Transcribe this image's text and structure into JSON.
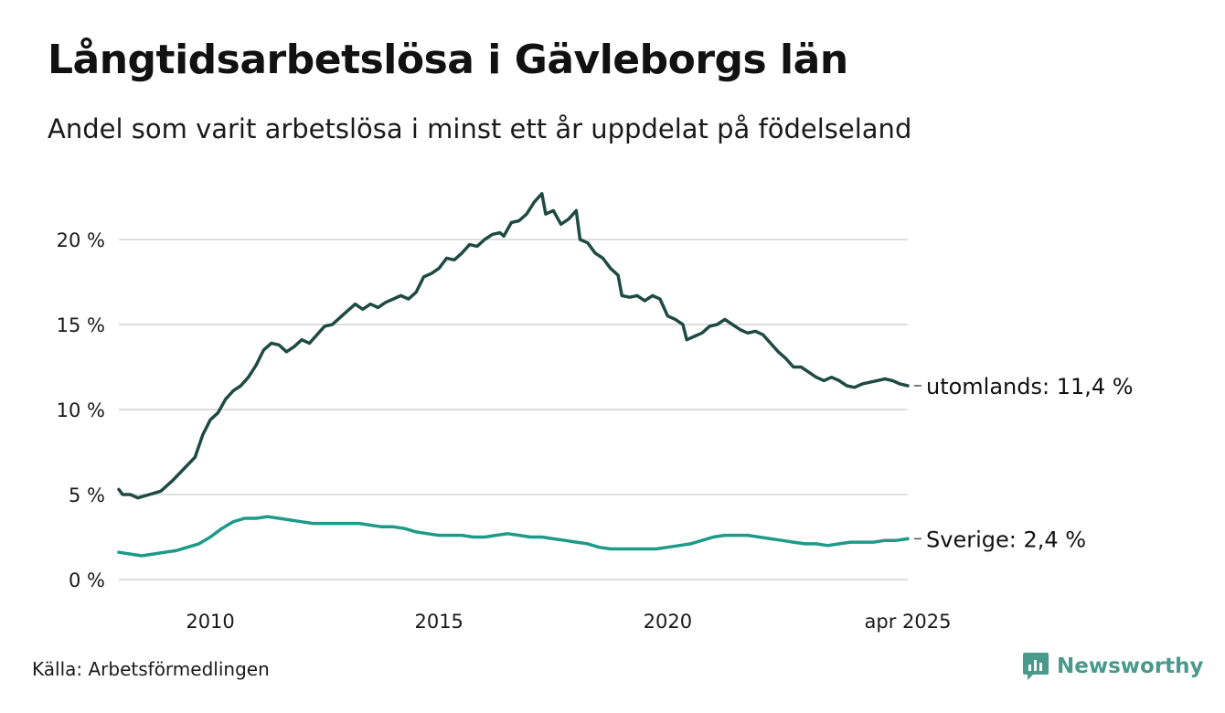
{
  "title": "Långtidsarbetslösa i Gävleborgs län",
  "subtitle": "Andel som varit arbetslösa i minst ett år uppdelat på födelseland",
  "source": "Källa: Arbetsförmedlingen",
  "brand": {
    "name": "Newsworthy",
    "icon": "newsworthy-logo-icon",
    "color": "#4a9a8c"
  },
  "chart_data": {
    "type": "line",
    "x_start": "2008-01",
    "x_end": "2025-04",
    "x_ticks": [
      {
        "date": "2010-01",
        "label": "2010"
      },
      {
        "date": "2015-01",
        "label": "2015"
      },
      {
        "date": "2020-01",
        "label": "2020"
      },
      {
        "date": "2025-04",
        "label": "apr 2025"
      }
    ],
    "ylim": [
      0,
      23
    ],
    "y_ticks": [
      {
        "value": 0,
        "label": "0 %"
      },
      {
        "value": 5,
        "label": "5 %"
      },
      {
        "value": 10,
        "label": "10 %"
      },
      {
        "value": 15,
        "label": "15 %"
      },
      {
        "value": 20,
        "label": "20 %"
      }
    ],
    "grid": true,
    "series": [
      {
        "name": "utomlands",
        "end_label": "utomlands: 11,4 %",
        "color": "#1f4a42",
        "points": [
          [
            "2008-01",
            5.3
          ],
          [
            "2008-02",
            5.0
          ],
          [
            "2008-04",
            5.0
          ],
          [
            "2008-06",
            4.8
          ],
          [
            "2008-09",
            5.0
          ],
          [
            "2008-12",
            5.2
          ],
          [
            "2009-03",
            5.8
          ],
          [
            "2009-06",
            6.5
          ],
          [
            "2009-09",
            7.2
          ],
          [
            "2009-11",
            8.5
          ],
          [
            "2010-01",
            9.4
          ],
          [
            "2010-03",
            9.8
          ],
          [
            "2010-05",
            10.6
          ],
          [
            "2010-07",
            11.1
          ],
          [
            "2010-09",
            11.4
          ],
          [
            "2010-11",
            11.9
          ],
          [
            "2011-01",
            12.6
          ],
          [
            "2011-03",
            13.5
          ],
          [
            "2011-05",
            13.9
          ],
          [
            "2011-07",
            13.8
          ],
          [
            "2011-09",
            13.4
          ],
          [
            "2011-11",
            13.7
          ],
          [
            "2012-01",
            14.1
          ],
          [
            "2012-03",
            13.9
          ],
          [
            "2012-05",
            14.4
          ],
          [
            "2012-07",
            14.9
          ],
          [
            "2012-09",
            15.0
          ],
          [
            "2012-11",
            15.4
          ],
          [
            "2013-01",
            15.8
          ],
          [
            "2013-03",
            16.2
          ],
          [
            "2013-05",
            15.9
          ],
          [
            "2013-07",
            16.2
          ],
          [
            "2013-09",
            16.0
          ],
          [
            "2013-11",
            16.3
          ],
          [
            "2014-01",
            16.5
          ],
          [
            "2014-03",
            16.7
          ],
          [
            "2014-05",
            16.5
          ],
          [
            "2014-07",
            16.9
          ],
          [
            "2014-09",
            17.8
          ],
          [
            "2014-11",
            18.0
          ],
          [
            "2015-01",
            18.3
          ],
          [
            "2015-03",
            18.9
          ],
          [
            "2015-05",
            18.8
          ],
          [
            "2015-07",
            19.2
          ],
          [
            "2015-09",
            19.7
          ],
          [
            "2015-11",
            19.6
          ],
          [
            "2016-01",
            20.0
          ],
          [
            "2016-03",
            20.3
          ],
          [
            "2016-05",
            20.4
          ],
          [
            "2016-06",
            20.2
          ],
          [
            "2016-08",
            21.0
          ],
          [
            "2016-10",
            21.1
          ],
          [
            "2016-12",
            21.5
          ],
          [
            "2017-02",
            22.2
          ],
          [
            "2017-04",
            22.7
          ],
          [
            "2017-05",
            21.5
          ],
          [
            "2017-07",
            21.7
          ],
          [
            "2017-09",
            20.9
          ],
          [
            "2017-11",
            21.2
          ],
          [
            "2018-01",
            21.7
          ],
          [
            "2018-02",
            20.0
          ],
          [
            "2018-04",
            19.8
          ],
          [
            "2018-06",
            19.2
          ],
          [
            "2018-08",
            18.9
          ],
          [
            "2018-10",
            18.3
          ],
          [
            "2018-12",
            17.9
          ],
          [
            "2019-01",
            16.7
          ],
          [
            "2019-03",
            16.6
          ],
          [
            "2019-05",
            16.7
          ],
          [
            "2019-07",
            16.4
          ],
          [
            "2019-09",
            16.7
          ],
          [
            "2019-11",
            16.5
          ],
          [
            "2020-01",
            15.5
          ],
          [
            "2020-03",
            15.3
          ],
          [
            "2020-05",
            15.0
          ],
          [
            "2020-06",
            14.1
          ],
          [
            "2020-08",
            14.3
          ],
          [
            "2020-10",
            14.5
          ],
          [
            "2020-12",
            14.9
          ],
          [
            "2021-02",
            15.0
          ],
          [
            "2021-04",
            15.3
          ],
          [
            "2021-06",
            15.0
          ],
          [
            "2021-08",
            14.7
          ],
          [
            "2021-10",
            14.5
          ],
          [
            "2021-12",
            14.6
          ],
          [
            "2022-02",
            14.4
          ],
          [
            "2022-04",
            13.9
          ],
          [
            "2022-06",
            13.4
          ],
          [
            "2022-08",
            13.0
          ],
          [
            "2022-10",
            12.5
          ],
          [
            "2022-12",
            12.5
          ],
          [
            "2023-02",
            12.2
          ],
          [
            "2023-04",
            11.9
          ],
          [
            "2023-06",
            11.7
          ],
          [
            "2023-08",
            11.9
          ],
          [
            "2023-10",
            11.7
          ],
          [
            "2023-12",
            11.4
          ],
          [
            "2024-02",
            11.3
          ],
          [
            "2024-04",
            11.5
          ],
          [
            "2024-06",
            11.6
          ],
          [
            "2024-08",
            11.7
          ],
          [
            "2024-10",
            11.8
          ],
          [
            "2024-12",
            11.7
          ],
          [
            "2025-02",
            11.5
          ],
          [
            "2025-04",
            11.4
          ]
        ]
      },
      {
        "name": "Sverige",
        "end_label": "Sverige:  2,4 %",
        "color": "#1d9a8a",
        "points": [
          [
            "2008-01",
            1.6
          ],
          [
            "2008-04",
            1.5
          ],
          [
            "2008-07",
            1.4
          ],
          [
            "2008-10",
            1.5
          ],
          [
            "2009-01",
            1.6
          ],
          [
            "2009-04",
            1.7
          ],
          [
            "2009-07",
            1.9
          ],
          [
            "2009-10",
            2.1
          ],
          [
            "2010-01",
            2.5
          ],
          [
            "2010-04",
            3.0
          ],
          [
            "2010-07",
            3.4
          ],
          [
            "2010-10",
            3.6
          ],
          [
            "2011-01",
            3.6
          ],
          [
            "2011-04",
            3.7
          ],
          [
            "2011-07",
            3.6
          ],
          [
            "2011-10",
            3.5
          ],
          [
            "2012-01",
            3.4
          ],
          [
            "2012-04",
            3.3
          ],
          [
            "2012-07",
            3.3
          ],
          [
            "2012-10",
            3.3
          ],
          [
            "2013-01",
            3.3
          ],
          [
            "2013-04",
            3.3
          ],
          [
            "2013-07",
            3.2
          ],
          [
            "2013-10",
            3.1
          ],
          [
            "2014-01",
            3.1
          ],
          [
            "2014-04",
            3.0
          ],
          [
            "2014-07",
            2.8
          ],
          [
            "2014-10",
            2.7
          ],
          [
            "2015-01",
            2.6
          ],
          [
            "2015-04",
            2.6
          ],
          [
            "2015-07",
            2.6
          ],
          [
            "2015-10",
            2.5
          ],
          [
            "2016-01",
            2.5
          ],
          [
            "2016-04",
            2.6
          ],
          [
            "2016-07",
            2.7
          ],
          [
            "2016-10",
            2.6
          ],
          [
            "2017-01",
            2.5
          ],
          [
            "2017-04",
            2.5
          ],
          [
            "2017-07",
            2.4
          ],
          [
            "2017-10",
            2.3
          ],
          [
            "2018-01",
            2.2
          ],
          [
            "2018-04",
            2.1
          ],
          [
            "2018-07",
            1.9
          ],
          [
            "2018-10",
            1.8
          ],
          [
            "2019-01",
            1.8
          ],
          [
            "2019-04",
            1.8
          ],
          [
            "2019-07",
            1.8
          ],
          [
            "2019-10",
            1.8
          ],
          [
            "2020-01",
            1.9
          ],
          [
            "2020-04",
            2.0
          ],
          [
            "2020-07",
            2.1
          ],
          [
            "2020-10",
            2.3
          ],
          [
            "2021-01",
            2.5
          ],
          [
            "2021-04",
            2.6
          ],
          [
            "2021-07",
            2.6
          ],
          [
            "2021-10",
            2.6
          ],
          [
            "2022-01",
            2.5
          ],
          [
            "2022-04",
            2.4
          ],
          [
            "2022-07",
            2.3
          ],
          [
            "2022-10",
            2.2
          ],
          [
            "2023-01",
            2.1
          ],
          [
            "2023-04",
            2.1
          ],
          [
            "2023-07",
            2.0
          ],
          [
            "2023-10",
            2.1
          ],
          [
            "2024-01",
            2.2
          ],
          [
            "2024-04",
            2.2
          ],
          [
            "2024-07",
            2.2
          ],
          [
            "2024-10",
            2.3
          ],
          [
            "2025-01",
            2.3
          ],
          [
            "2025-04",
            2.4
          ]
        ]
      }
    ]
  }
}
